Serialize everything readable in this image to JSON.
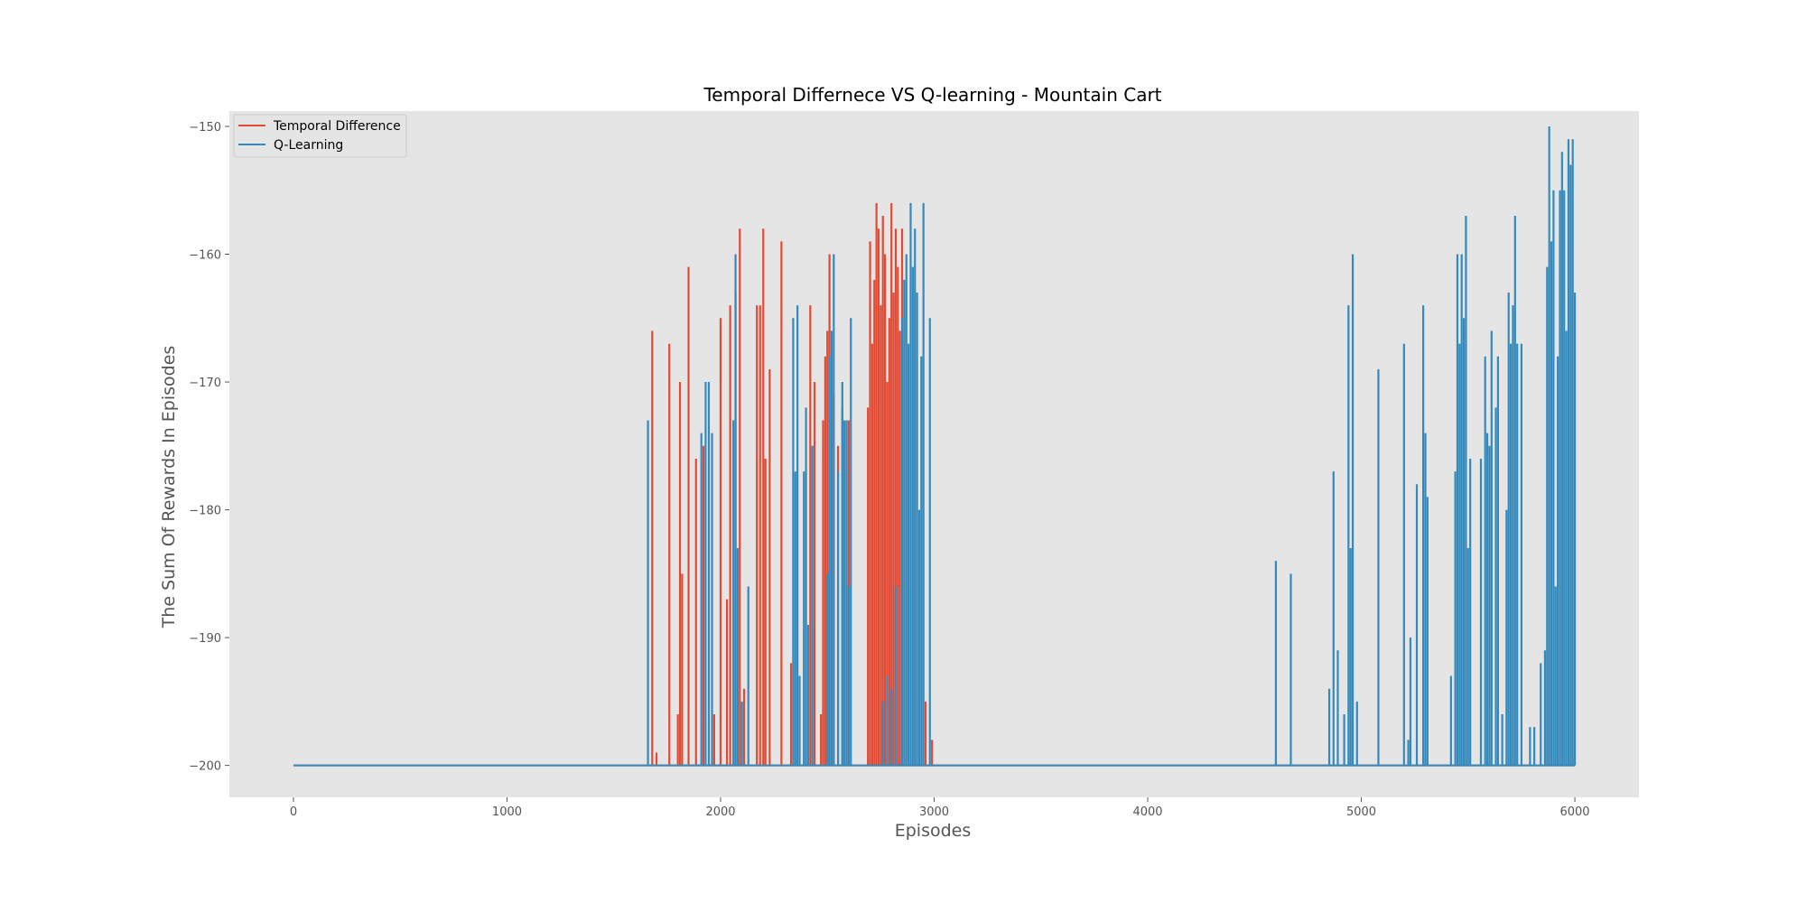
{
  "chart_data": {
    "type": "line",
    "title": "Temporal Differnece VS Q-learning - Mountain Cart",
    "xlabel": "Episodes",
    "ylabel": "The Sum Of Rewards In Episodes",
    "xlim": [
      -300,
      6300
    ],
    "ylim": [
      -202.5,
      -148.8
    ],
    "xticks": [
      0,
      1000,
      2000,
      3000,
      4000,
      5000,
      6000
    ],
    "yticks": [
      -200,
      -190,
      -180,
      -170,
      -160,
      -150
    ],
    "xtick_labels": [
      "0",
      "1000",
      "2000",
      "3000",
      "4000",
      "5000",
      "6000"
    ],
    "ytick_labels": [
      "−200",
      "−190",
      "−180",
      "−170",
      "−160",
      "−150"
    ],
    "grid": false,
    "legend_position": "top-left",
    "baseline": -200,
    "series": [
      {
        "name": "Temporal Difference",
        "color": "#E24A33",
        "spikes": [
          [
            1680,
            -166
          ],
          [
            1700,
            -199
          ],
          [
            1760,
            -167
          ],
          [
            1800,
            -196
          ],
          [
            1810,
            -170
          ],
          [
            1820,
            -185
          ],
          [
            1850,
            -161
          ],
          [
            1885,
            -176
          ],
          [
            1920,
            -175
          ],
          [
            1970,
            -196
          ],
          [
            2000,
            -165
          ],
          [
            2030,
            -187
          ],
          [
            2045,
            -164
          ],
          [
            2070,
            -163
          ],
          [
            2090,
            -158
          ],
          [
            2110,
            -194
          ],
          [
            2170,
            -164
          ],
          [
            2185,
            -164
          ],
          [
            2200,
            -158
          ],
          [
            2210,
            -176
          ],
          [
            2230,
            -169
          ],
          [
            2285,
            -159
          ],
          [
            2330,
            -192
          ],
          [
            2420,
            -164
          ],
          [
            2440,
            -170
          ],
          [
            2470,
            -196
          ],
          [
            2480,
            -173
          ],
          [
            2490,
            -168
          ],
          [
            2500,
            -166
          ],
          [
            2510,
            -160
          ],
          [
            2530,
            -171
          ],
          [
            2550,
            -175
          ],
          [
            2570,
            -172
          ],
          [
            2600,
            -173
          ],
          [
            2690,
            -172
          ],
          [
            2700,
            -159
          ],
          [
            2710,
            -167
          ],
          [
            2720,
            -162
          ],
          [
            2730,
            -156
          ],
          [
            2740,
            -158
          ],
          [
            2750,
            -164
          ],
          [
            2760,
            -157
          ],
          [
            2770,
            -160
          ],
          [
            2780,
            -170
          ],
          [
            2790,
            -165
          ],
          [
            2800,
            -156
          ],
          [
            2810,
            -163
          ],
          [
            2820,
            -158
          ],
          [
            2830,
            -161
          ],
          [
            2840,
            -166
          ],
          [
            2850,
            -158
          ],
          [
            2960,
            -195
          ],
          [
            2990,
            -198
          ]
        ]
      },
      {
        "name": "Q-Learning",
        "color": "#348ABD",
        "spikes": [
          [
            1660,
            -173
          ],
          [
            1910,
            -174
          ],
          [
            1930,
            -170
          ],
          [
            1945,
            -170
          ],
          [
            1960,
            -174
          ],
          [
            2060,
            -173
          ],
          [
            2070,
            -160
          ],
          [
            2080,
            -183
          ],
          [
            2100,
            -195
          ],
          [
            2130,
            -186
          ],
          [
            2340,
            -165
          ],
          [
            2350,
            -177
          ],
          [
            2360,
            -164
          ],
          [
            2370,
            -193
          ],
          [
            2390,
            -177
          ],
          [
            2400,
            -172
          ],
          [
            2410,
            -189
          ],
          [
            2430,
            -175
          ],
          [
            2500,
            -185
          ],
          [
            2510,
            -168
          ],
          [
            2520,
            -166
          ],
          [
            2530,
            -160
          ],
          [
            2550,
            -177
          ],
          [
            2570,
            -170
          ],
          [
            2580,
            -173
          ],
          [
            2590,
            -173
          ],
          [
            2600,
            -186
          ],
          [
            2610,
            -165
          ],
          [
            2760,
            -195
          ],
          [
            2780,
            -193
          ],
          [
            2800,
            -194
          ],
          [
            2820,
            -186
          ],
          [
            2850,
            -165
          ],
          [
            2860,
            -162
          ],
          [
            2870,
            -160
          ],
          [
            2880,
            -167
          ],
          [
            2890,
            -156
          ],
          [
            2900,
            -161
          ],
          [
            2910,
            -158
          ],
          [
            2920,
            -163
          ],
          [
            2930,
            -180
          ],
          [
            2940,
            -168
          ],
          [
            2950,
            -156
          ],
          [
            2980,
            -165
          ],
          [
            4600,
            -184
          ],
          [
            4670,
            -185
          ],
          [
            4850,
            -194
          ],
          [
            4870,
            -177
          ],
          [
            4890,
            -191
          ],
          [
            4920,
            -196
          ],
          [
            4940,
            -164
          ],
          [
            4950,
            -183
          ],
          [
            4960,
            -160
          ],
          [
            4980,
            -195
          ],
          [
            5080,
            -169
          ],
          [
            5200,
            -167
          ],
          [
            5220,
            -198
          ],
          [
            5230,
            -190
          ],
          [
            5260,
            -178
          ],
          [
            5290,
            -164
          ],
          [
            5300,
            -174
          ],
          [
            5310,
            -179
          ],
          [
            5420,
            -193
          ],
          [
            5440,
            -177
          ],
          [
            5450,
            -160
          ],
          [
            5460,
            -167
          ],
          [
            5470,
            -160
          ],
          [
            5480,
            -165
          ],
          [
            5490,
            -157
          ],
          [
            5500,
            -183
          ],
          [
            5510,
            -176
          ],
          [
            5560,
            -176
          ],
          [
            5580,
            -168
          ],
          [
            5590,
            -174
          ],
          [
            5600,
            -175
          ],
          [
            5610,
            -166
          ],
          [
            5630,
            -172
          ],
          [
            5640,
            -168
          ],
          [
            5660,
            -196
          ],
          [
            5680,
            -180
          ],
          [
            5690,
            -163
          ],
          [
            5700,
            -167
          ],
          [
            5710,
            -164
          ],
          [
            5720,
            -157
          ],
          [
            5730,
            -167
          ],
          [
            5750,
            -167
          ],
          [
            5790,
            -197
          ],
          [
            5810,
            -197
          ],
          [
            5840,
            -192
          ],
          [
            5860,
            -191
          ],
          [
            5870,
            -161
          ],
          [
            5880,
            -150
          ],
          [
            5890,
            -159
          ],
          [
            5900,
            -155
          ],
          [
            5910,
            -186
          ],
          [
            5920,
            -168
          ],
          [
            5930,
            -155
          ],
          [
            5940,
            -152
          ],
          [
            5950,
            -155
          ],
          [
            5960,
            -166
          ],
          [
            5970,
            -151
          ],
          [
            5980,
            -153
          ],
          [
            5990,
            -151
          ],
          [
            6000,
            -163
          ]
        ]
      }
    ]
  }
}
